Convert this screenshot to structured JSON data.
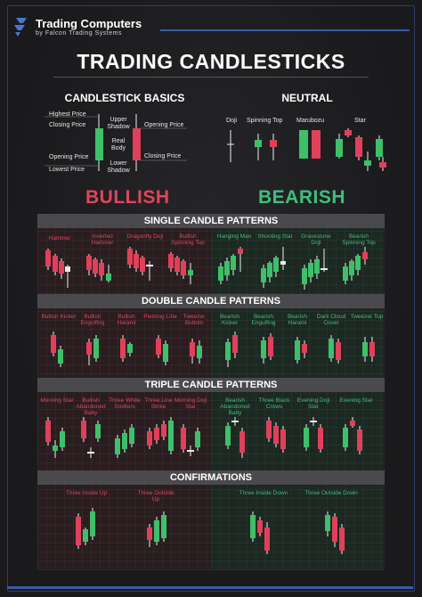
{
  "brand": {
    "name": "Trading Computers",
    "sub": "by Falcon Trading Systems"
  },
  "title": "TRADING CANDLESTICKS",
  "basics": {
    "heading": "CANDLESTICK BASICS",
    "labels": {
      "highest_price": "Highest Price",
      "closing_price_left": "Closing Price",
      "opening_price_left": "Opening Price",
      "lowest_price": "Lowest Price",
      "upper_shadow": "Upper Shadow",
      "real_body": "Real Body",
      "lower_shadow": "Lower Shadow",
      "opening_price_right": "Opening Price",
      "closing_price_right": "Closing Price"
    }
  },
  "neutral": {
    "heading": "NEUTRAL",
    "items": [
      "Doji",
      "Spinning Top",
      "Marubozu",
      "Star"
    ]
  },
  "bullish_label": "BULLISH",
  "bearish_label": "BEARISH",
  "colors": {
    "bullish": "#e0455a",
    "bearish": "#3fbf7a",
    "bar": "#4a4a4e",
    "accent": "#3b5aa8"
  },
  "sections": {
    "single": {
      "heading": "SINGLE CANDLE PATTERNS",
      "bullish": [
        "Hammer",
        "Inverted Hammer",
        "Dragonfly Doji",
        "Bullish Spinning Top"
      ],
      "bearish": [
        "Hanging Man",
        "Shooting Star",
        "Gravestone Doji",
        "Bearish Spinning Top"
      ]
    },
    "double": {
      "heading": "DOUBLE CANDLE PATTERNS",
      "bullish": [
        "Bullish Kicker",
        "Bullish Engulfing",
        "Bullish Harami",
        "Piercing Line",
        "Tweezer Bottom"
      ],
      "bearish": [
        "Bearish Kicker",
        "Bearish Engulfing",
        "Bearish Harami",
        "Dark Cloud Cover",
        "Tweezer Top"
      ]
    },
    "triple": {
      "heading": "TRIPLE CANDLE PATTERNS",
      "bullish": [
        "Morning Star",
        "Bullish Abandoned Baby",
        "Three White Soldiers",
        "Three Line Strike",
        "Morning Doji Star"
      ],
      "bearish": [
        "Bearish Abandoned Baby",
        "Three Black Crows",
        "Evening Doji Star",
        "Evening Star"
      ]
    },
    "confirmations": {
      "heading": "CONFIRMATIONS",
      "bullish": [
        "Three Inside Up",
        "Three Outside Up"
      ],
      "bearish": [
        "Three Inside Down",
        "Three Outside Down"
      ]
    }
  }
}
